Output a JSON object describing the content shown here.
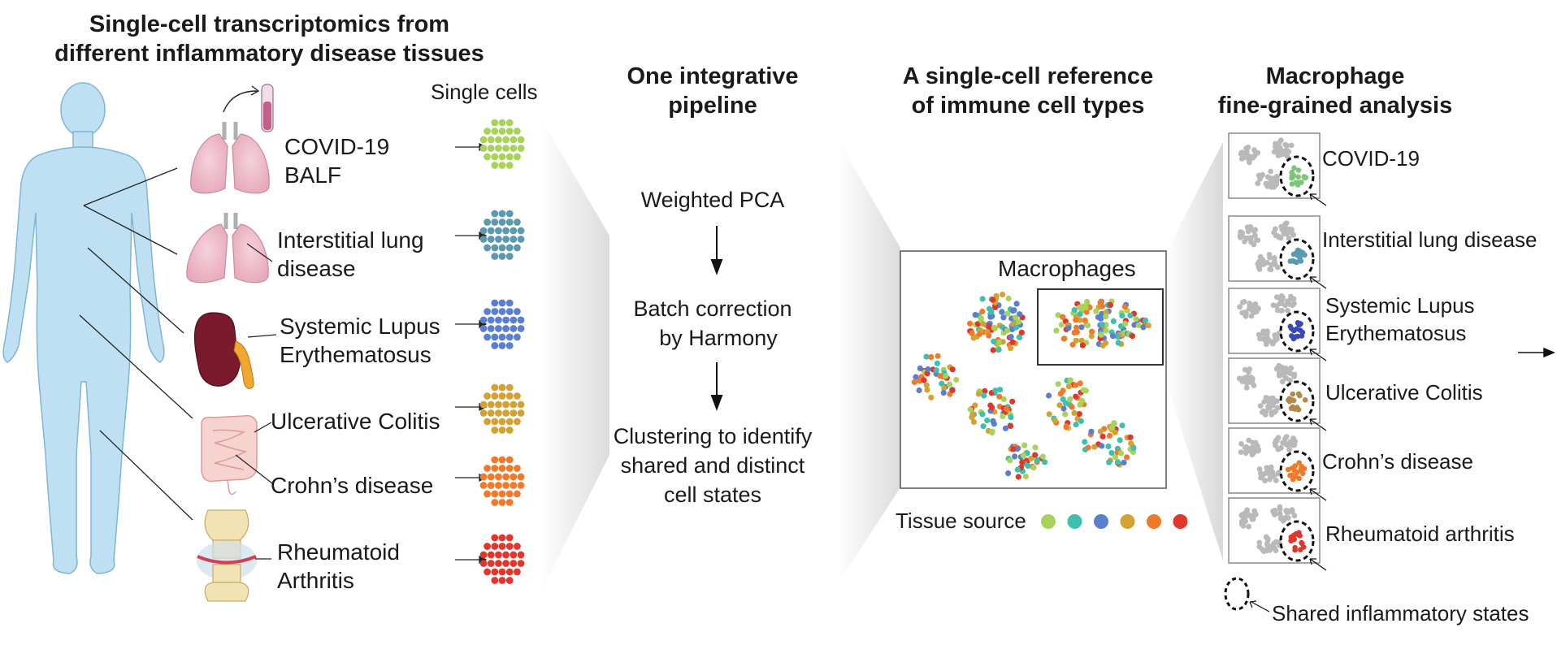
{
  "left": {
    "title_line1": "Single-cell transcriptomics from",
    "title_line2": "different inflammatory disease tissues",
    "single_cells_label": "Single cells",
    "tissues": [
      {
        "label": "COVID-19\nBALF",
        "organ": "lung-icon",
        "color": "#a8d35a"
      },
      {
        "label": "Interstitial lung\ndisease",
        "organ": "lung-icon",
        "color": "#5a9ab0"
      },
      {
        "label": "Systemic Lupus\nErythematosus",
        "organ": "kidney-icon",
        "color": "#5a7fcf"
      },
      {
        "label": "Ulcerative Colitis",
        "organ": "intestine-icon",
        "color": "#d4a233"
      },
      {
        "label": "Crohn’s disease",
        "organ": "intestine-icon",
        "color": "#ef7a2c"
      },
      {
        "label": "Rheumatoid\nArthritis",
        "organ": "joint-icon",
        "color": "#e0362b"
      }
    ]
  },
  "pipeline": {
    "title_line1": "One integrative",
    "title_line2": "pipeline",
    "step1": "Weighted PCA",
    "step2_line1": "Batch correction",
    "step2_line2": "by Harmony",
    "step3_line1": "Clustering to identify",
    "step3_line2": "shared and distinct",
    "step3_line3": "cell states"
  },
  "reference": {
    "title_line1": "A single-cell reference",
    "title_line2": "of immune cell types",
    "macrophages_label": "Macrophages",
    "tissue_source_label": "Tissue source",
    "tissue_colors": [
      "#a8d35a",
      "#3fbfb0",
      "#5a7fcf",
      "#d4a233",
      "#ef7a2c",
      "#e0362b"
    ]
  },
  "macrophage": {
    "title_line1": "Macrophage",
    "title_line2": "fine-grained analysis",
    "panels": [
      {
        "label": "COVID-19",
        "color": "#7ec47a"
      },
      {
        "label": "Interstitial lung disease",
        "color": "#5a9ab0"
      },
      {
        "label": "Systemic Lupus\nErythematosus",
        "color": "#3b48b8"
      },
      {
        "label": "Ulcerative Colitis",
        "color": "#b08a4a"
      },
      {
        "label": "Crohn’s disease",
        "color": "#ef7a2c"
      },
      {
        "label": "Rheumatoid arthritis",
        "color": "#e0362b"
      }
    ],
    "legend_label": "Shared inflammatory states"
  }
}
